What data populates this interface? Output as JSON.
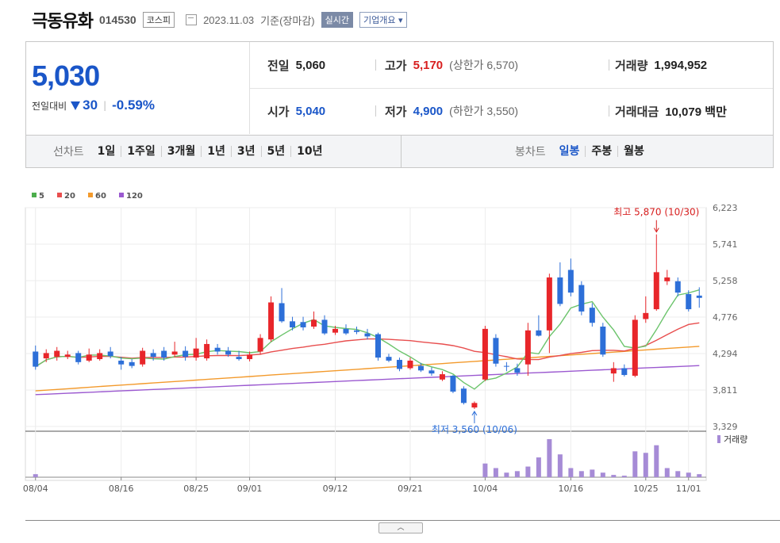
{
  "header": {
    "name": "극동유화",
    "code": "014530",
    "market": "코스피",
    "date": "2023.11.03",
    "basis": "기준(장마감)",
    "realtime": "실시간",
    "corp": "기업개요"
  },
  "quote": {
    "price": "5,030",
    "change_label": "전일대비",
    "change": "30",
    "change_pct": "-0.59%",
    "prev_label": "전일",
    "prev": "5,060",
    "open_label": "시가",
    "open": "5,040",
    "high_label": "고가",
    "high": "5,170",
    "upper_label": "(상한가",
    "upper": "6,570)",
    "low_label": "저가",
    "low": "4,900",
    "lower_label": "(하한가",
    "lower": "3,550)",
    "volume_label": "거래량",
    "volume": "1,994,952",
    "amount_label": "거래대금",
    "amount": "10,079",
    "amount_unit": "백만"
  },
  "tabs": {
    "line_label": "선차트",
    "periods": [
      "1일",
      "1주일",
      "3개월",
      "1년",
      "3년",
      "5년",
      "10년"
    ],
    "candle_label": "봉차트",
    "candle": [
      "일봉",
      "주봉",
      "월봉"
    ],
    "active_candle": "일봉"
  },
  "chart_data": {
    "type": "candlestick",
    "y_ticks": [
      "6,223",
      "5,741",
      "5,258",
      "4,776",
      "4,294",
      "3,811",
      "3,329"
    ],
    "ylim": [
      3329,
      6223
    ],
    "x_ticks": [
      "08/04",
      "08/16",
      "08/25",
      "09/01",
      "09/12",
      "09/21",
      "10/04",
      "10/16",
      "10/25",
      "11/01"
    ],
    "legend": [
      {
        "name": "5",
        "color": "#4cae4c"
      },
      {
        "name": "20",
        "color": "#e84e4e"
      },
      {
        "name": "60",
        "color": "#f39a2c"
      },
      {
        "name": "120",
        "color": "#9b59d0"
      }
    ],
    "max_annotation": "최고 5,870 (10/30)",
    "min_annotation": "최저 3,560 (10/06)",
    "volume_label": "거래량",
    "candles": [
      [
        4320,
        4120,
        4400,
        4080
      ],
      [
        4230,
        4300,
        4350,
        4180
      ],
      [
        4250,
        4330,
        4380,
        4200
      ],
      [
        4250,
        4280,
        4330,
        4220
      ],
      [
        4300,
        4180,
        4330,
        4150
      ],
      [
        4200,
        4280,
        4360,
        4180
      ],
      [
        4220,
        4300,
        4350,
        4200
      ],
      [
        4320,
        4260,
        4380,
        4230
      ],
      [
        4200,
        4150,
        4250,
        4080
      ],
      [
        4180,
        4130,
        4220,
        4100
      ],
      [
        4150,
        4330,
        4370,
        4120
      ],
      [
        4300,
        4250,
        4350,
        4200
      ],
      [
        4330,
        4240,
        4380,
        4200
      ],
      [
        4280,
        4320,
        4450,
        4250
      ],
      [
        4330,
        4250,
        4390,
        4200
      ],
      [
        4240,
        4360,
        4500,
        4200
      ],
      [
        4230,
        4420,
        4480,
        4200
      ],
      [
        4370,
        4320,
        4420,
        4280
      ],
      [
        4330,
        4280,
        4380,
        4250
      ],
      [
        4250,
        4220,
        4330,
        4200
      ],
      [
        4220,
        4280,
        4320,
        4190
      ],
      [
        4320,
        4500,
        4550,
        4280
      ],
      [
        4480,
        4970,
        5050,
        4450
      ],
      [
        4960,
        4720,
        5160,
        4700
      ],
      [
        4720,
        4640,
        4780,
        4600
      ],
      [
        4710,
        4640,
        4780,
        4600
      ],
      [
        4650,
        4740,
        4850,
        4620
      ],
      [
        4740,
        4560,
        4800,
        4540
      ],
      [
        4570,
        4620,
        4660,
        4540
      ],
      [
        4620,
        4560,
        4680,
        4540
      ],
      [
        4600,
        4580,
        4650,
        4550
      ],
      [
        4560,
        4520,
        4620,
        4480
      ],
      [
        4550,
        4240,
        4570,
        4200
      ],
      [
        4250,
        4200,
        4290,
        4180
      ],
      [
        4210,
        4090,
        4240,
        4060
      ],
      [
        4100,
        4200,
        4240,
        4080
      ],
      [
        4130,
        4070,
        4170,
        4050
      ],
      [
        4070,
        4030,
        4110,
        4000
      ],
      [
        3950,
        4020,
        4060,
        3930
      ],
      [
        4000,
        3790,
        4010,
        3770
      ],
      [
        3830,
        3640,
        3860,
        3620
      ],
      [
        3580,
        3640,
        3660,
        3560
      ],
      [
        3950,
        4620,
        4660,
        3930
      ],
      [
        4500,
        4160,
        4550,
        4120
      ],
      [
        4130,
        4120,
        4180,
        4060
      ],
      [
        4100,
        4040,
        4160,
        4000
      ],
      [
        4150,
        4600,
        4700,
        4000
      ],
      [
        4600,
        4530,
        4800,
        4520
      ],
      [
        4600,
        5300,
        5350,
        4300
      ],
      [
        5300,
        4950,
        5500,
        4920
      ],
      [
        5400,
        5100,
        5550,
        5050
      ],
      [
        5200,
        4850,
        5250,
        4800
      ],
      [
        4900,
        4700,
        4960,
        4650
      ],
      [
        4650,
        4280,
        4700,
        4250
      ],
      [
        4030,
        4100,
        4180,
        3920
      ],
      [
        4100,
        4010,
        4150,
        3990
      ],
      [
        4000,
        4740,
        4800,
        3980
      ],
      [
        4750,
        4830,
        5050,
        4700
      ],
      [
        4880,
        5370,
        5870,
        4860
      ],
      [
        5250,
        5300,
        5400,
        5200
      ],
      [
        5250,
        5100,
        5300,
        5050
      ],
      [
        5080,
        4880,
        5130,
        4850
      ],
      [
        5060,
        5030,
        5170,
        4900
      ]
    ],
    "volume": [
      4,
      0,
      0,
      0,
      0,
      0,
      0,
      0,
      0,
      0,
      0,
      0,
      0,
      0,
      0,
      0,
      0,
      0,
      0,
      0,
      0,
      0,
      0,
      0,
      0,
      0,
      0,
      0,
      0,
      0,
      0,
      0,
      0,
      0,
      0,
      0,
      0,
      0,
      0,
      0,
      0,
      0,
      18,
      12,
      6,
      8,
      14,
      26,
      50,
      30,
      12,
      8,
      10,
      6,
      3,
      2,
      34,
      32,
      42,
      12,
      8,
      6,
      4
    ]
  }
}
